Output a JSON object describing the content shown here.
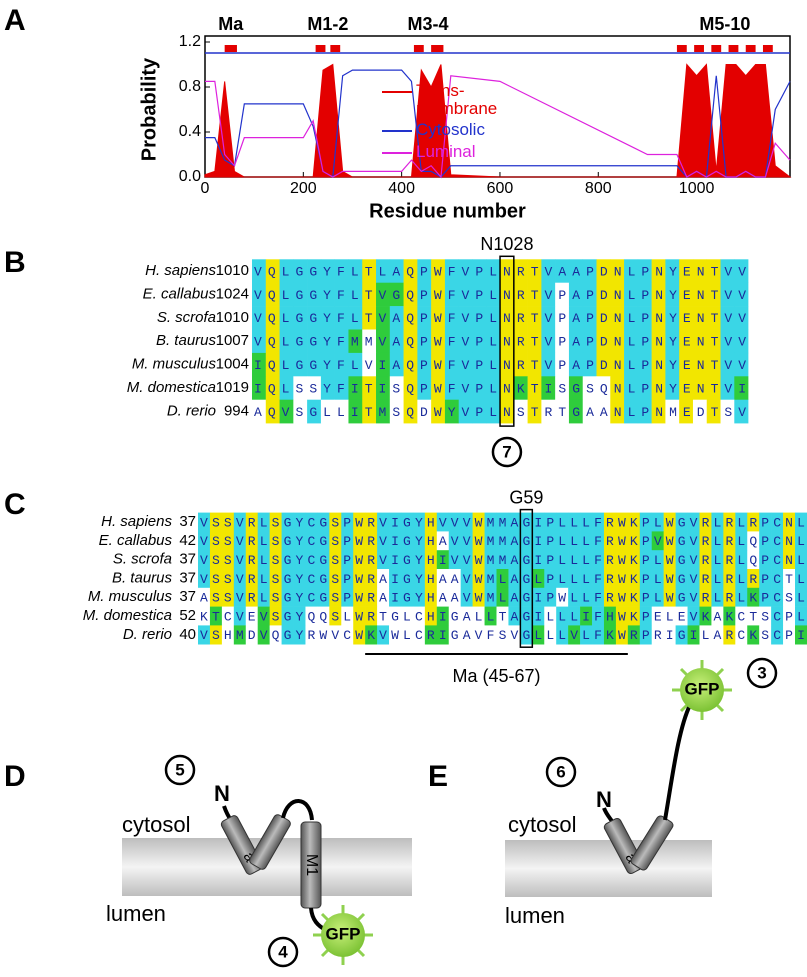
{
  "panel_labels": [
    "A",
    "B",
    "C",
    "D",
    "E"
  ],
  "chart_data": {
    "type": "line",
    "x_label": "Residue number",
    "y_label": "Probability",
    "xlim": [
      0,
      1190
    ],
    "ylim": [
      0,
      1.2
    ],
    "xticks": [
      0,
      200,
      400,
      600,
      800,
      1000
    ],
    "yticks": [
      {
        "value": 0,
        "label": "0.0"
      },
      0.4,
      0.8,
      1.2
    ],
    "x": [
      0,
      20,
      40,
      60,
      80,
      200,
      220,
      240,
      260,
      280,
      300,
      400,
      420,
      440,
      460,
      480,
      500,
      600,
      900,
      960,
      980,
      1000,
      1020,
      1040,
      1060,
      1080,
      1100,
      1120,
      1140,
      1160,
      1190
    ],
    "series": [
      {
        "name": "Trans-membrane",
        "color": "#e30000",
        "area": true,
        "values": [
          0.02,
          0.05,
          0.85,
          0.05,
          0,
          0,
          0,
          0.95,
          1.0,
          0.05,
          0,
          0,
          0,
          0.95,
          0.8,
          1.0,
          0.02,
          0,
          0,
          0,
          1.0,
          0.9,
          1.0,
          0.05,
          1.0,
          1.0,
          0.9,
          1.0,
          1.0,
          0.1,
          0
        ]
      },
      {
        "name": "Cytosolic",
        "color": "#2233cc",
        "area": false,
        "values": [
          0.35,
          0.35,
          0.15,
          0.1,
          0.65,
          0.65,
          0.45,
          0.05,
          0,
          0.9,
          0.95,
          0.95,
          0.85,
          0.05,
          0.05,
          0,
          0.1,
          0.1,
          0.1,
          0.1,
          0,
          0.05,
          0,
          0.9,
          0,
          0,
          0.05,
          0,
          0,
          0.6,
          0.85
        ]
      },
      {
        "name": "Luminal",
        "color": "#dd22dd",
        "area": false,
        "values": [
          0.85,
          0.85,
          0.2,
          0.1,
          0.35,
          0.35,
          0.5,
          0.05,
          0,
          0.05,
          0.05,
          0.05,
          0.15,
          0.05,
          0.1,
          0,
          0.9,
          0.85,
          0.2,
          0.2,
          0,
          0.05,
          0,
          0.05,
          0,
          0,
          0.05,
          0,
          0,
          0.3,
          0.15
        ]
      }
    ],
    "helices": [
      {
        "label": "Ma",
        "ranges": [
          [
            40,
            65
          ]
        ]
      },
      {
        "label": "M1-2",
        "ranges": [
          [
            225,
            245
          ],
          [
            255,
            275
          ]
        ]
      },
      {
        "label": "M3-4",
        "ranges": [
          [
            425,
            445
          ],
          [
            460,
            485
          ]
        ]
      },
      {
        "label": "M5-10",
        "ranges": [
          [
            960,
            980
          ],
          [
            995,
            1015
          ],
          [
            1030,
            1050
          ],
          [
            1065,
            1085
          ],
          [
            1100,
            1120
          ],
          [
            1135,
            1155
          ]
        ]
      }
    ]
  },
  "panel_b": {
    "highlight_label": "N1028",
    "marker": "7",
    "rows": [
      {
        "species": "H. sapiens",
        "start": "1010",
        "sequence": "VQLGGYFLTLAQPWFVPLNRTVAAPDNLPNYENTVV"
      },
      {
        "species": "E. callabus",
        "start": "1024",
        "sequence": "VQLGGYFLTVGQPWFVPLNRTVPAPDNLPNYENTVV"
      },
      {
        "species": "S. scrofa",
        "start": "1010",
        "sequence": "VQLGGYFLTVAQPWFVPLNRTVPAPDNLPNYENTVV"
      },
      {
        "species": "B. taurus",
        "start": "1007",
        "sequence": "VQLGGYFMMVAQPWFVPLNRTVPAPDNLPNYENTVV"
      },
      {
        "species": "M. musculus",
        "start": "1004",
        "sequence": "IQLGGYFLVIAQPWFVPLNRTVPAPDNLPNYENTVV"
      },
      {
        "species": "M. domestica",
        "start": "1019",
        "sequence": "IQLSSYFITISQPWFVPLNKTISGSQNLPNYENTVI"
      },
      {
        "species": "D. rerio",
        "start": "994",
        "sequence": "AQVSGLLITMSQDWYVPLNSTRTGAANLPNMEDTSV"
      }
    ]
  },
  "panel_c": {
    "highlight_label": "G59",
    "region_label": "Ma (45-67)",
    "rows": [
      {
        "species": "H. sapiens",
        "start": "37",
        "sequence": "VSSVRLSGYCGSPWRVIGYHVVVWMMAGIPLLLFRWKPLWGVRLRLRPCNL"
      },
      {
        "species": "E. callabus",
        "start": "42",
        "sequence": "VSSVRLSGYCGSPWRVIGYHAVVWMMAGIPLLLFRWKPVWGVRLRLQPCNL"
      },
      {
        "species": "S. scrofa",
        "start": "37",
        "sequence": "VSSVRLSGYCGSPWRVIGYHIVVWMMAGIPLLLFRWKPLWGVRLRLQPCNL"
      },
      {
        "species": "B. taurus",
        "start": "37",
        "sequence": "VSSVRLSGYCGSPWRAIGYHAAVWMLAGLPLLLFRWKPLWGVRLRLRPCTL"
      },
      {
        "species": "M. musculus",
        "start": "37",
        "sequence": "ASSVRLSGYCGSPWRAIGYHAAVWMLAGIPWLLFRWKPLWGVRLRLKPCSL"
      },
      {
        "species": "M. domestica",
        "start": "52",
        "sequence": "KTCVEVSGYQQSLWRTGLCHIGALLTAGILLLIFHWKPELEVKAKCTSCPL"
      },
      {
        "species": "D. rerio",
        "start": "40",
        "sequence": "VSHMDVQGYRWVCWKVWLCRIGAVFSVGLLLVLFKWRPRIGILARCKSCPI"
      }
    ]
  },
  "panel_d": {
    "marker_n": "5",
    "marker_gfp": "4",
    "n_label": "N",
    "gfp": "GFP",
    "helix_a": "a",
    "helix_m1": "M1",
    "cytosol": "cytosol",
    "lumen": "lumen"
  },
  "panel_e": {
    "marker_n": "6",
    "marker_gfp": "3",
    "n_label": "N",
    "gfp": "GFP",
    "helix_a": "a",
    "cytosol": "cytosol",
    "lumen": "lumen"
  }
}
